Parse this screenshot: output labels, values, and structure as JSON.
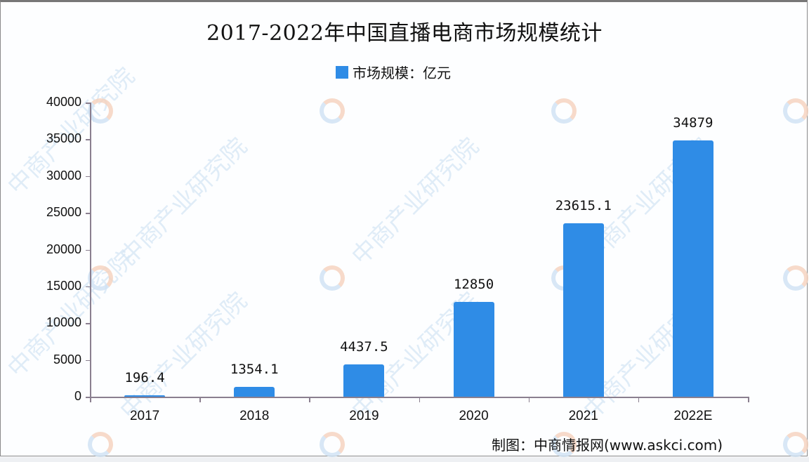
{
  "chart_data": {
    "type": "bar",
    "title": "2017-2022年中国直播电商市场规模统计",
    "categories": [
      "2017",
      "2018",
      "2019",
      "2020",
      "2021",
      "2022E"
    ],
    "series": [
      {
        "name": "市场规模：亿元",
        "values": [
          196.4,
          1354.1,
          4437.5,
          12850,
          23615.1,
          34879
        ],
        "color": "#2f8ce6"
      }
    ],
    "value_labels": [
      "196.4",
      "1354.1",
      "4437.5",
      "12850",
      "23615.1",
      "34879"
    ],
    "xlabel": "",
    "ylabel": "",
    "ylim": [
      0,
      40000
    ],
    "yticks": [
      0,
      5000,
      10000,
      15000,
      20000,
      25000,
      30000,
      35000,
      40000
    ],
    "grid": false,
    "legend_position": "top"
  },
  "title": "2017-2022年中国直播电商市场规模统计",
  "legend": {
    "label": "市场规模：亿元",
    "color": "#2f8ce6"
  },
  "source": "制图：中商情报网(www.askci.com)",
  "watermark": "中商产业研究院"
}
